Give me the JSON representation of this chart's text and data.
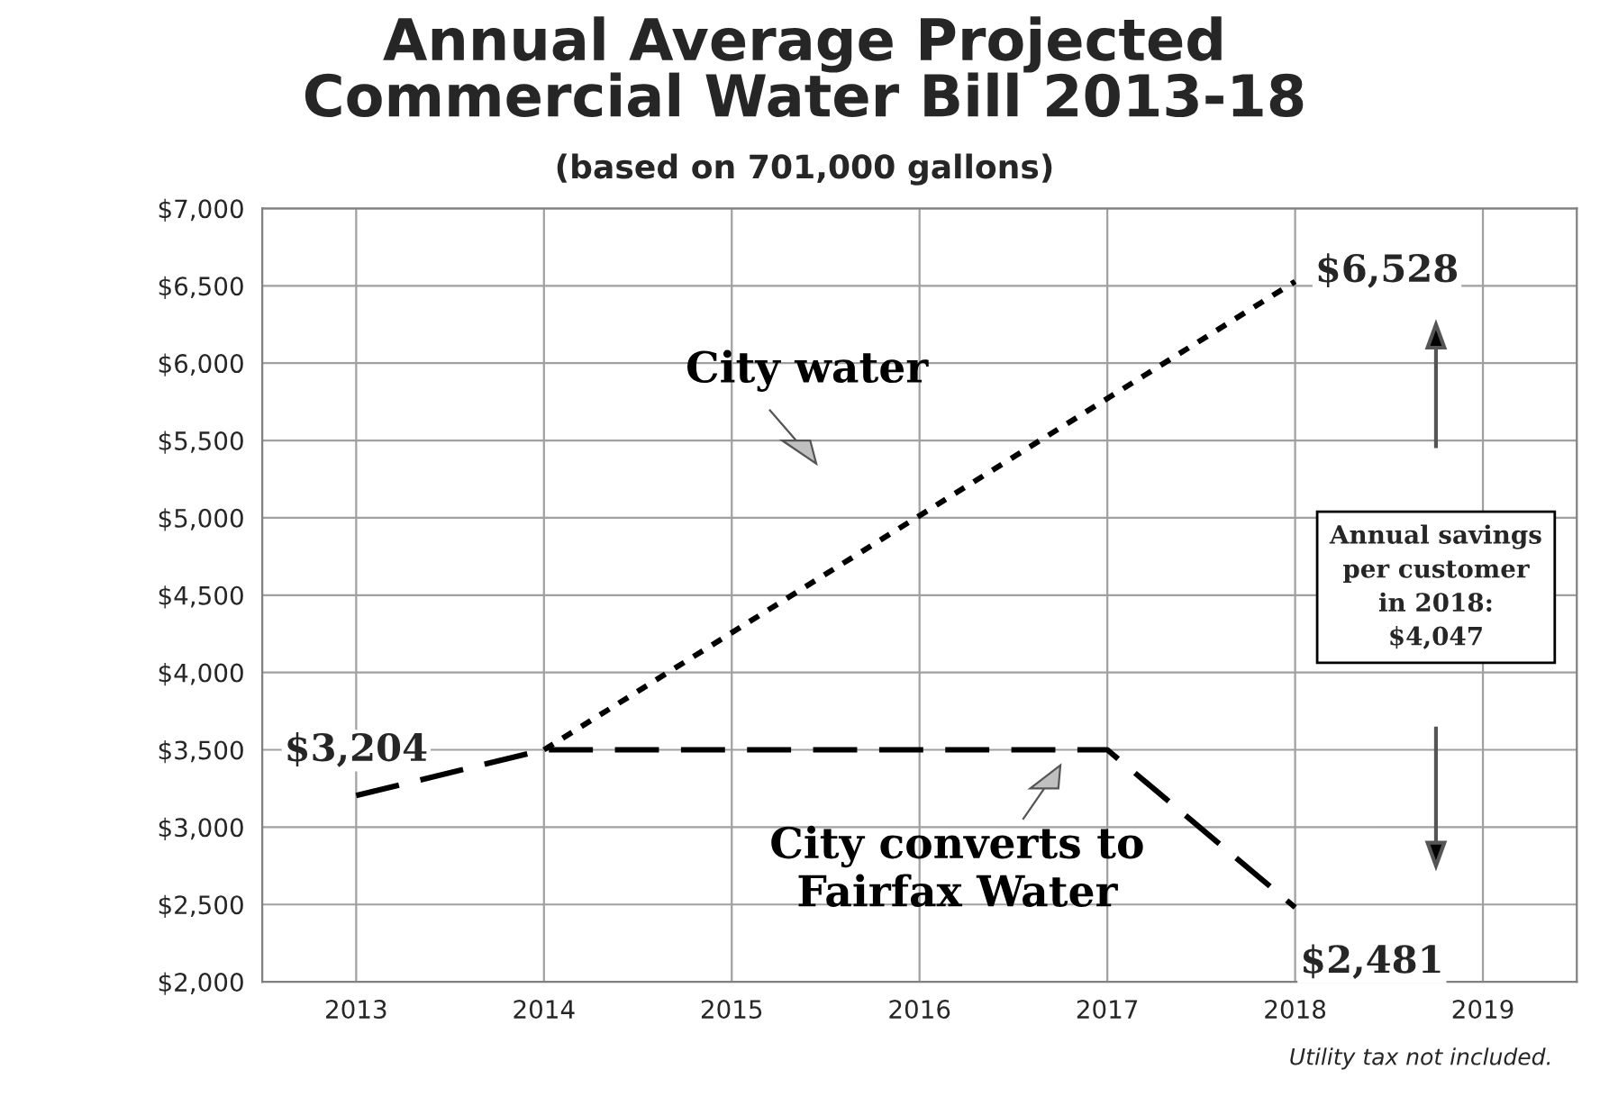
{
  "chart_data": {
    "type": "line",
    "title": "Annual Average Projected\nCommercial Water Bill 2013-18",
    "subtitle": "(based on 701,000 gallons)",
    "series": [
      {
        "name": "City water",
        "x": [
          2014,
          2018
        ],
        "values": [
          3500,
          6528
        ],
        "value_labels": [
          null,
          "$6,528"
        ],
        "color": "#000000",
        "line_style": "dotted"
      },
      {
        "name": "City converts to\nFairfax Water",
        "x": [
          2013,
          2014,
          2017,
          2018
        ],
        "values": [
          3204,
          3500,
          3500,
          2481
        ],
        "value_labels": [
          "$3,204",
          null,
          null,
          "$2,481"
        ],
        "color": "#000000",
        "line_style": "dashed"
      }
    ],
    "xlim": [
      2012.5,
      2019.5
    ],
    "xticks": [
      2013,
      2014,
      2015,
      2016,
      2017,
      2018,
      2019
    ],
    "ylim": [
      2000,
      7000
    ],
    "yticks": [
      {
        "value": 2000,
        "label": "$2,000"
      },
      {
        "value": 2500,
        "label": "$2,500"
      },
      {
        "value": 3000,
        "label": "$3,000"
      },
      {
        "value": 3500,
        "label": "$3,500"
      },
      {
        "value": 4000,
        "label": "$4,000"
      },
      {
        "value": 4500,
        "label": "$4,500"
      },
      {
        "value": 5000,
        "label": "$5,000"
      },
      {
        "value": 5500,
        "label": "$5,500"
      },
      {
        "value": 6000,
        "label": "$6,000"
      },
      {
        "value": 6500,
        "label": "$6,500"
      },
      {
        "value": 7000,
        "label": "$7,000"
      }
    ],
    "grid": true,
    "marker": "none",
    "annotations": [
      "Annual savings\nper customer\nin 2018:\n$4,047",
      "Utility tax not included."
    ]
  }
}
